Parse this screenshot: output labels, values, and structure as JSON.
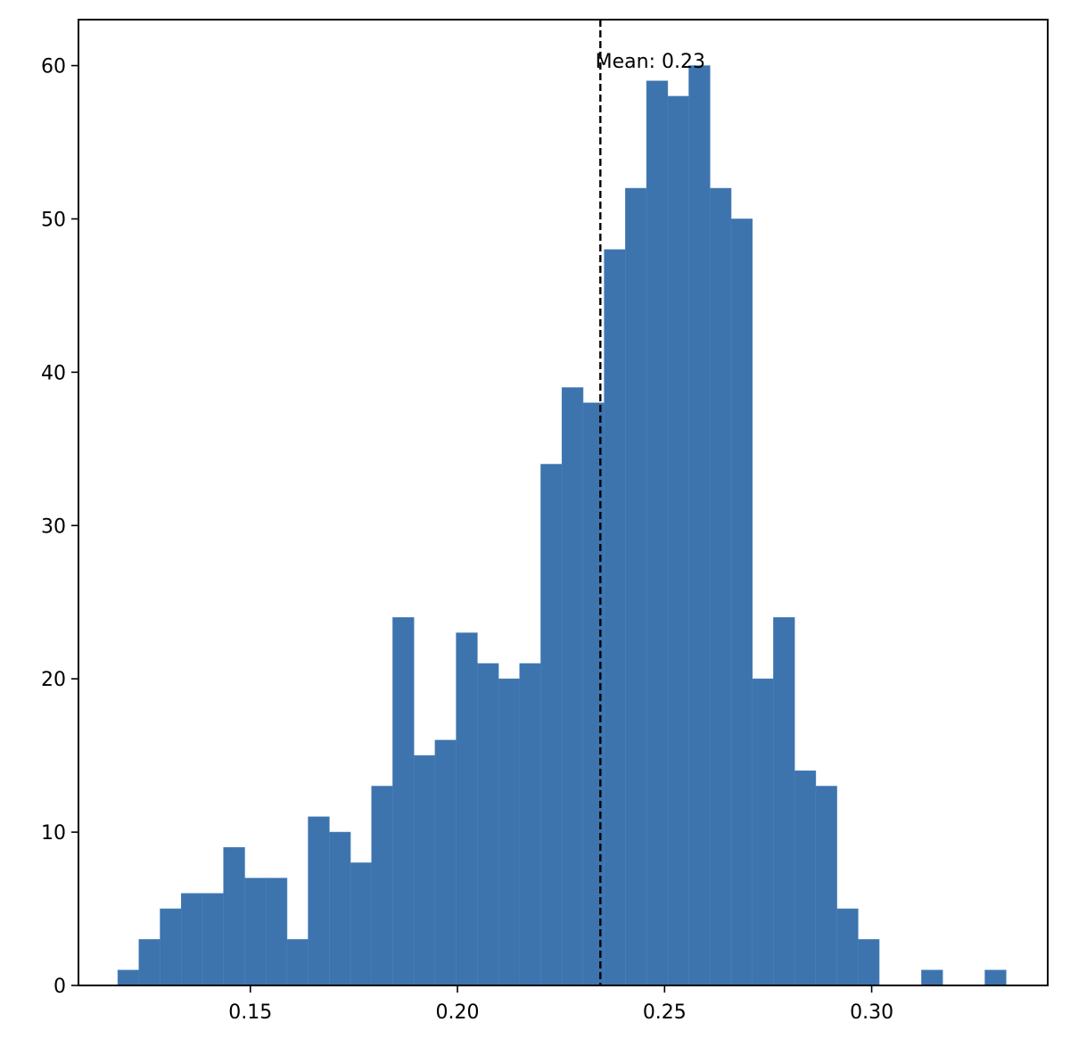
{
  "chart_data": {
    "type": "bar",
    "subtype": "histogram",
    "title": "",
    "xlabel": "",
    "ylabel": "",
    "bin_start": 0.118,
    "bin_width": 0.005106,
    "values": [
      1,
      3,
      5,
      6,
      6,
      9,
      7,
      7,
      3,
      11,
      10,
      8,
      13,
      24,
      15,
      16,
      23,
      21,
      20,
      21,
      34,
      39,
      38,
      48,
      52,
      59,
      58,
      60,
      52,
      50,
      20,
      24,
      14,
      13,
      5,
      3,
      0,
      0,
      1,
      0,
      0,
      1
    ],
    "xlim": [
      0.1085,
      0.3425
    ],
    "ylim": [
      0,
      63
    ],
    "xticks": [
      0.15,
      0.2,
      0.25,
      0.3
    ],
    "xtick_labels": [
      "0.15",
      "0.20",
      "0.25",
      "0.30"
    ],
    "yticks": [
      0,
      10,
      20,
      30,
      40,
      50,
      60
    ],
    "ytick_labels": [
      "0",
      "10",
      "20",
      "30",
      "40",
      "50",
      "60"
    ],
    "mean_line": {
      "x": 0.2345,
      "label": "Mean: 0.23"
    },
    "bar_color": "#3d74ae",
    "bar_edge_color": "#4a80b8",
    "grid": false,
    "legend": "none"
  }
}
